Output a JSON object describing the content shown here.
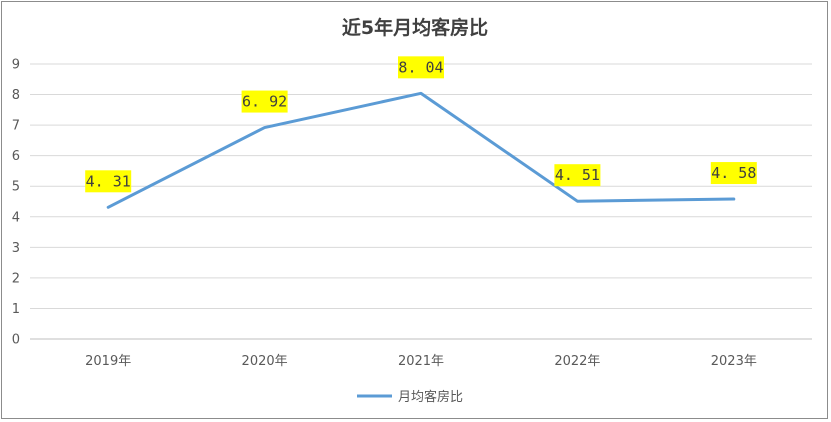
{
  "chart_data": {
    "type": "line",
    "title": "近5年月均客房比",
    "categories": [
      "2019年",
      "2020年",
      "2021年",
      "2022年",
      "2023年"
    ],
    "series": [
      {
        "name": "月均客房比",
        "values": [
          4.31,
          6.92,
          8.04,
          4.51,
          4.58
        ],
        "color": "#5b9bd5"
      }
    ],
    "data_labels": [
      "4. 31",
      "6. 92",
      "8. 04",
      "4. 51",
      "4. 58"
    ],
    "data_label_background": "#ffff00",
    "ylim": [
      0,
      9
    ],
    "yticks": [
      0,
      1,
      2,
      3,
      4,
      5,
      6,
      7,
      8,
      9
    ],
    "grid": true,
    "legend_position": "bottom"
  }
}
